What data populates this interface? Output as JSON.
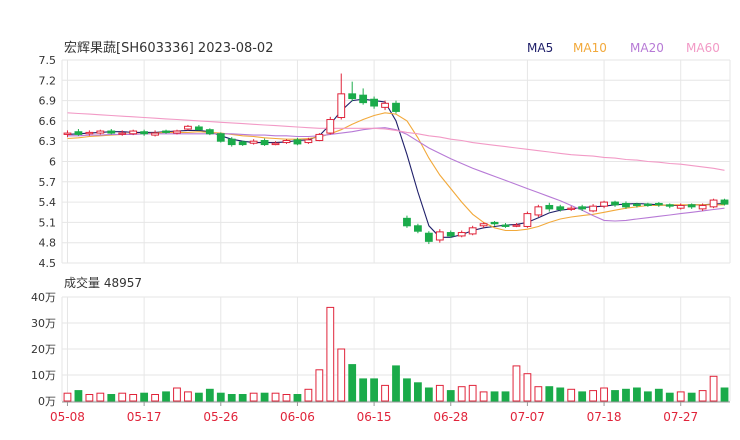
{
  "header": {
    "title": "宏辉果蔬[SH603336] 2023-08-02"
  },
  "legend": [
    {
      "label": "MA5",
      "color": "#20206a"
    },
    {
      "label": "MA10",
      "color": "#f2a93b"
    },
    {
      "label": "MA20",
      "color": "#b77ad6"
    },
    {
      "label": "MA60",
      "color": "#f29ac6"
    }
  ],
  "colors": {
    "up": "#e0243a",
    "down": "#1aab4a",
    "grid": "#e6e6e6",
    "axis": "#999999",
    "date_label": "#e0243a"
  },
  "volume_panel": {
    "label": "成交量 48957"
  },
  "chart_data": [
    {
      "type": "candlestick",
      "title": "宏辉果蔬[SH603336] 2023-08-02",
      "x": [
        "05-08",
        "05-09",
        "05-10",
        "05-11",
        "05-12",
        "05-15",
        "05-16",
        "05-17",
        "05-18",
        "05-19",
        "05-22",
        "05-23",
        "05-24",
        "05-25",
        "05-26",
        "05-29",
        "05-30",
        "05-31",
        "06-01",
        "06-02",
        "06-05",
        "06-06",
        "06-07",
        "06-08",
        "06-09",
        "06-12",
        "06-13",
        "06-14",
        "06-15",
        "06-16",
        "06-19",
        "06-20",
        "06-21",
        "06-26",
        "06-27",
        "06-28",
        "06-29",
        "06-30",
        "07-03",
        "07-04",
        "07-05",
        "07-06",
        "07-07",
        "07-10",
        "07-11",
        "07-12",
        "07-13",
        "07-14",
        "07-17",
        "07-18",
        "07-19",
        "07-20",
        "07-21",
        "07-24",
        "07-25",
        "07-26",
        "07-27",
        "07-28",
        "07-31",
        "08-01",
        "08-02"
      ],
      "x_tick_labels": [
        "05-08",
        "05-17",
        "05-26",
        "06-06",
        "06-15",
        "06-28",
        "07-07",
        "07-18",
        "07-27"
      ],
      "y_ticks": [
        "7.5",
        "7.2",
        "6.9",
        "6.6",
        "6.3",
        "6",
        "5.7",
        "5.4",
        "5.1",
        "4.8",
        "4.5"
      ],
      "ylim": [
        4.5,
        7.5
      ],
      "series": [
        {
          "name": "MA5",
          "values": [
            6.4,
            6.41,
            6.42,
            6.43,
            6.44,
            6.44,
            6.43,
            6.43,
            6.43,
            6.44,
            6.45,
            6.46,
            6.46,
            6.44,
            6.38,
            6.33,
            6.3,
            6.28,
            6.28,
            6.28,
            6.29,
            6.31,
            6.32,
            6.38,
            6.55,
            6.75,
            6.9,
            6.92,
            6.9,
            6.88,
            6.6,
            6.1,
            5.55,
            5.05,
            4.88,
            4.88,
            4.92,
            4.98,
            5.02,
            5.04,
            5.06,
            5.07,
            5.1,
            5.17,
            5.24,
            5.28,
            5.3,
            5.32,
            5.33,
            5.34,
            5.36,
            5.37,
            5.38,
            5.37,
            5.36,
            5.35,
            5.35,
            5.36,
            5.36,
            5.37,
            5.38
          ]
        },
        {
          "name": "MA10",
          "values": [
            6.34,
            6.35,
            6.37,
            6.38,
            6.39,
            6.4,
            6.41,
            6.41,
            6.42,
            6.43,
            6.43,
            6.43,
            6.44,
            6.43,
            6.42,
            6.4,
            6.38,
            6.37,
            6.35,
            6.34,
            6.33,
            6.33,
            6.34,
            6.36,
            6.41,
            6.47,
            6.55,
            6.62,
            6.68,
            6.72,
            6.7,
            6.6,
            6.35,
            6.05,
            5.8,
            5.6,
            5.4,
            5.22,
            5.1,
            5.02,
            4.98,
            4.98,
            5.0,
            5.04,
            5.1,
            5.15,
            5.18,
            5.2,
            5.22,
            5.25,
            5.28,
            5.31,
            5.33,
            5.35,
            5.35,
            5.36,
            5.36,
            5.36,
            5.36,
            5.36,
            5.36
          ]
        },
        {
          "name": "MA20",
          "values": [
            6.38,
            6.38,
            6.39,
            6.39,
            6.4,
            6.4,
            6.4,
            6.41,
            6.41,
            6.41,
            6.41,
            6.41,
            6.41,
            6.41,
            6.41,
            6.41,
            6.4,
            6.39,
            6.39,
            6.38,
            6.38,
            6.37,
            6.37,
            6.38,
            6.4,
            6.42,
            6.44,
            6.47,
            6.49,
            6.5,
            6.47,
            6.4,
            6.3,
            6.2,
            6.12,
            6.04,
            5.97,
            5.9,
            5.84,
            5.78,
            5.72,
            5.66,
            5.6,
            5.54,
            5.48,
            5.42,
            5.35,
            5.28,
            5.2,
            5.13,
            5.12,
            5.13,
            5.15,
            5.17,
            5.19,
            5.21,
            5.23,
            5.25,
            5.27,
            5.29,
            5.31
          ]
        },
        {
          "name": "MA60",
          "values": [
            6.72,
            6.71,
            6.7,
            6.69,
            6.68,
            6.67,
            6.66,
            6.65,
            6.64,
            6.63,
            6.62,
            6.61,
            6.6,
            6.59,
            6.58,
            6.57,
            6.56,
            6.55,
            6.54,
            6.53,
            6.52,
            6.51,
            6.5,
            6.49,
            6.49,
            6.49,
            6.49,
            6.49,
            6.49,
            6.48,
            6.46,
            6.43,
            6.41,
            6.38,
            6.36,
            6.33,
            6.31,
            6.28,
            6.26,
            6.24,
            6.22,
            6.2,
            6.18,
            6.16,
            6.14,
            6.12,
            6.1,
            6.09,
            6.08,
            6.06,
            6.05,
            6.03,
            6.02,
            6.0,
            5.99,
            5.97,
            5.96,
            5.94,
            5.92,
            5.9,
            5.87
          ]
        }
      ],
      "candles": [
        {
          "o": 6.4,
          "c": 6.42,
          "h": 6.46,
          "l": 6.36
        },
        {
          "o": 6.44,
          "c": 6.4,
          "h": 6.48,
          "l": 6.38
        },
        {
          "o": 6.41,
          "c": 6.43,
          "h": 6.46,
          "l": 6.38
        },
        {
          "o": 6.42,
          "c": 6.45,
          "h": 6.47,
          "l": 6.4
        },
        {
          "o": 6.45,
          "c": 6.42,
          "h": 6.48,
          "l": 6.4
        },
        {
          "o": 6.41,
          "c": 6.42,
          "h": 6.46,
          "l": 6.38
        },
        {
          "o": 6.41,
          "c": 6.45,
          "h": 6.47,
          "l": 6.39
        },
        {
          "o": 6.44,
          "c": 6.41,
          "h": 6.47,
          "l": 6.38
        },
        {
          "o": 6.39,
          "c": 6.42,
          "h": 6.46,
          "l": 6.37
        },
        {
          "o": 6.45,
          "c": 6.43,
          "h": 6.47,
          "l": 6.41
        },
        {
          "o": 6.42,
          "c": 6.45,
          "h": 6.47,
          "l": 6.4
        },
        {
          "o": 6.48,
          "c": 6.52,
          "h": 6.54,
          "l": 6.46
        },
        {
          "o": 6.51,
          "c": 6.47,
          "h": 6.54,
          "l": 6.46
        },
        {
          "o": 6.47,
          "c": 6.41,
          "h": 6.49,
          "l": 6.39
        },
        {
          "o": 6.41,
          "c": 6.3,
          "h": 6.43,
          "l": 6.28
        },
        {
          "o": 6.33,
          "c": 6.25,
          "h": 6.36,
          "l": 6.22
        },
        {
          "o": 6.29,
          "c": 6.25,
          "h": 6.31,
          "l": 6.23
        },
        {
          "o": 6.27,
          "c": 6.3,
          "h": 6.33,
          "l": 6.25
        },
        {
          "o": 6.31,
          "c": 6.25,
          "h": 6.34,
          "l": 6.23
        },
        {
          "o": 6.25,
          "c": 6.27,
          "h": 6.3,
          "l": 6.24
        },
        {
          "o": 6.28,
          "c": 6.31,
          "h": 6.33,
          "l": 6.26
        },
        {
          "o": 6.32,
          "c": 6.26,
          "h": 6.35,
          "l": 6.24
        },
        {
          "o": 6.28,
          "c": 6.32,
          "h": 6.35,
          "l": 6.26
        },
        {
          "o": 6.31,
          "c": 6.4,
          "h": 6.42,
          "l": 6.3
        },
        {
          "o": 6.42,
          "c": 6.62,
          "h": 6.66,
          "l": 6.4
        },
        {
          "o": 6.65,
          "c": 7.0,
          "h": 7.3,
          "l": 6.62
        },
        {
          "o": 7.0,
          "c": 6.93,
          "h": 7.18,
          "l": 6.89
        },
        {
          "o": 6.98,
          "c": 6.87,
          "h": 7.08,
          "l": 6.84
        },
        {
          "o": 6.92,
          "c": 6.82,
          "h": 6.96,
          "l": 6.78
        },
        {
          "o": 6.8,
          "c": 6.86,
          "h": 6.9,
          "l": 6.76
        },
        {
          "o": 6.86,
          "c": 6.74,
          "h": 6.9,
          "l": 6.71
        },
        {
          "o": 5.16,
          "c": 5.05,
          "h": 5.2,
          "l": 5.02
        },
        {
          "o": 5.05,
          "c": 4.97,
          "h": 5.08,
          "l": 4.94
        },
        {
          "o": 4.94,
          "c": 4.82,
          "h": 4.97,
          "l": 4.78
        },
        {
          "o": 4.84,
          "c": 4.96,
          "h": 5.0,
          "l": 4.8
        },
        {
          "o": 4.95,
          "c": 4.9,
          "h": 4.98,
          "l": 4.87
        },
        {
          "o": 4.9,
          "c": 4.95,
          "h": 4.98,
          "l": 4.88
        },
        {
          "o": 4.93,
          "c": 5.02,
          "h": 5.05,
          "l": 4.91
        },
        {
          "o": 5.05,
          "c": 5.08,
          "h": 5.1,
          "l": 5.02
        },
        {
          "o": 5.1,
          "c": 5.08,
          "h": 5.12,
          "l": 5.05
        },
        {
          "o": 5.06,
          "c": 5.04,
          "h": 5.09,
          "l": 5.02
        },
        {
          "o": 5.05,
          "c": 5.06,
          "h": 5.09,
          "l": 5.03
        },
        {
          "o": 5.04,
          "c": 5.23,
          "h": 5.26,
          "l": 5.02
        },
        {
          "o": 5.21,
          "c": 5.33,
          "h": 5.36,
          "l": 5.18
        },
        {
          "o": 5.35,
          "c": 5.3,
          "h": 5.39,
          "l": 5.26
        },
        {
          "o": 5.33,
          "c": 5.29,
          "h": 5.36,
          "l": 5.26
        },
        {
          "o": 5.3,
          "c": 5.31,
          "h": 5.34,
          "l": 5.27
        },
        {
          "o": 5.33,
          "c": 5.3,
          "h": 5.36,
          "l": 5.27
        },
        {
          "o": 5.27,
          "c": 5.34,
          "h": 5.37,
          "l": 5.25
        },
        {
          "o": 5.34,
          "c": 5.4,
          "h": 5.42,
          "l": 5.31
        },
        {
          "o": 5.4,
          "c": 5.36,
          "h": 5.42,
          "l": 5.33
        },
        {
          "o": 5.38,
          "c": 5.33,
          "h": 5.41,
          "l": 5.3
        },
        {
          "o": 5.37,
          "c": 5.35,
          "h": 5.39,
          "l": 5.32
        },
        {
          "o": 5.37,
          "c": 5.35,
          "h": 5.39,
          "l": 5.33
        },
        {
          "o": 5.38,
          "c": 5.36,
          "h": 5.4,
          "l": 5.33
        },
        {
          "o": 5.36,
          "c": 5.34,
          "h": 5.38,
          "l": 5.31
        },
        {
          "o": 5.31,
          "c": 5.35,
          "h": 5.38,
          "l": 5.29
        },
        {
          "o": 5.36,
          "c": 5.33,
          "h": 5.38,
          "l": 5.3
        },
        {
          "o": 5.3,
          "c": 5.35,
          "h": 5.38,
          "l": 5.27
        },
        {
          "o": 5.33,
          "c": 5.43,
          "h": 5.45,
          "l": 5.31
        },
        {
          "o": 5.43,
          "c": 5.37,
          "h": 5.45,
          "l": 5.35
        }
      ],
      "volume": {
        "label": "成交量 48957",
        "y_ticks": [
          "40万",
          "30万",
          "20万",
          "10万",
          "0万"
        ],
        "ylim": [
          0,
          40
        ],
        "unit": "万",
        "values": [
          3.0,
          4.0,
          2.5,
          3.0,
          2.5,
          3.0,
          2.5,
          3.0,
          2.5,
          3.5,
          5.0,
          3.5,
          3.0,
          4.5,
          3.0,
          2.5,
          2.5,
          3.0,
          3.0,
          3.0,
          2.5,
          2.5,
          4.5,
          12.0,
          36.0,
          20.0,
          14.0,
          8.5,
          8.5,
          6.0,
          13.5,
          8.5,
          7.0,
          5.0,
          6.0,
          4.0,
          5.5,
          6.0,
          3.5,
          3.5,
          3.5,
          13.5,
          10.5,
          5.5,
          5.5,
          5.0,
          4.5,
          3.5,
          4.0,
          5.0,
          4.0,
          4.5,
          5.0,
          3.5,
          4.5,
          3.0,
          3.5,
          3.0,
          4.0,
          9.5,
          5.0
        ]
      }
    }
  ]
}
